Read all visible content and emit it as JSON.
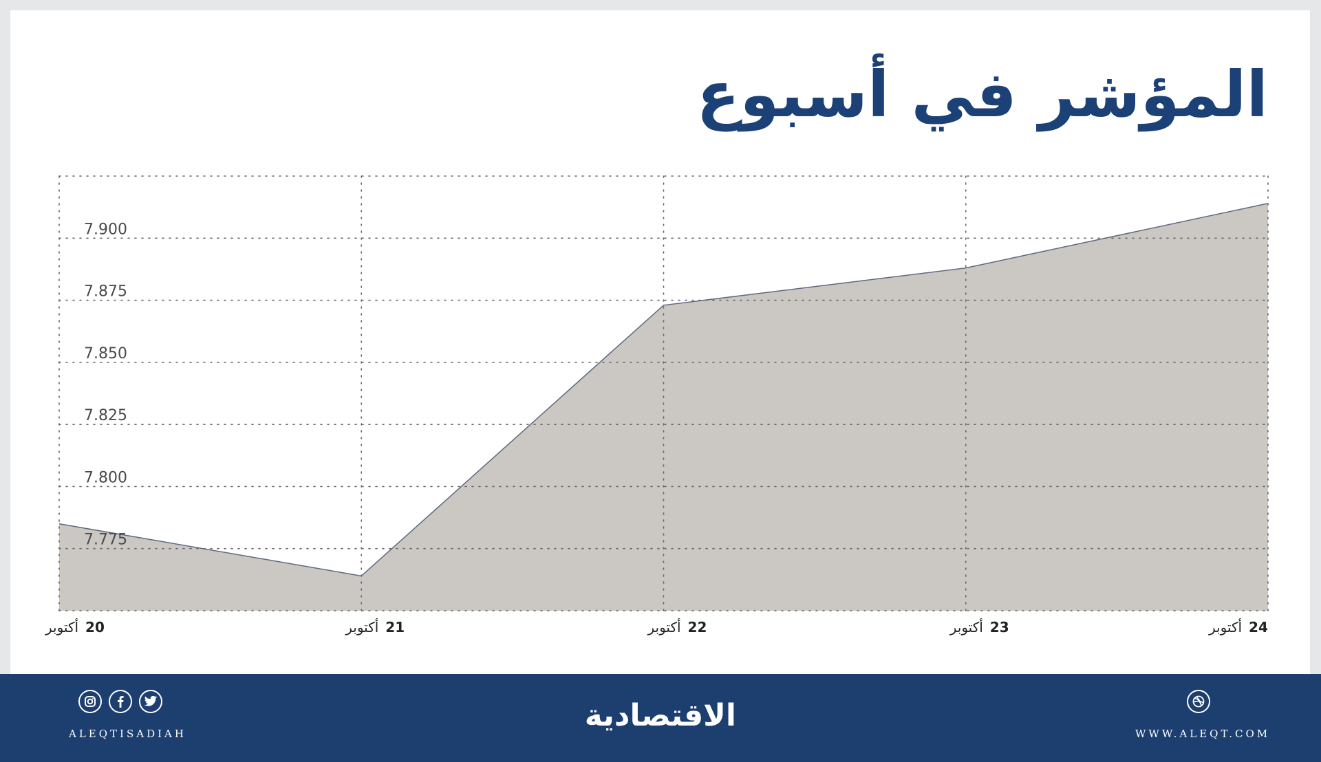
{
  "header": {
    "title": "المؤشر في أسبوع"
  },
  "colors": {
    "title": "#1c4176",
    "footer": "#1c3f70",
    "area_fill": "#cbc7c3",
    "area_stroke": "#5d6a80",
    "grid": "#666666",
    "background": "#e6e7e9"
  },
  "chart_data": {
    "type": "area",
    "title": "المؤشر في أسبوع",
    "categories": [
      "20 أكتوبر",
      "21 أكتوبر",
      "22 أكتوبر",
      "23 أكتوبر",
      "24 أكتوبر"
    ],
    "x_day": [
      "20",
      "21",
      "22",
      "23",
      "24"
    ],
    "x_month": "أكتوبر",
    "values": [
      7.785,
      7.764,
      7.873,
      7.888,
      7.914
    ],
    "xlabel": "",
    "ylabel": "",
    "ylim": [
      7.75,
      7.925
    ],
    "yticks": [
      "7.900",
      "7.875",
      "7.850",
      "7.825",
      "7.800",
      "7.775"
    ],
    "grid": true,
    "legend": "none"
  },
  "footer": {
    "social_handle": "ALEQTISADIAH",
    "website": "WWW.ALEQT.COM",
    "logo_text": "الاقتصادية",
    "icons": [
      "instagram-icon",
      "facebook-icon",
      "twitter-icon",
      "dribbble-icon"
    ]
  }
}
